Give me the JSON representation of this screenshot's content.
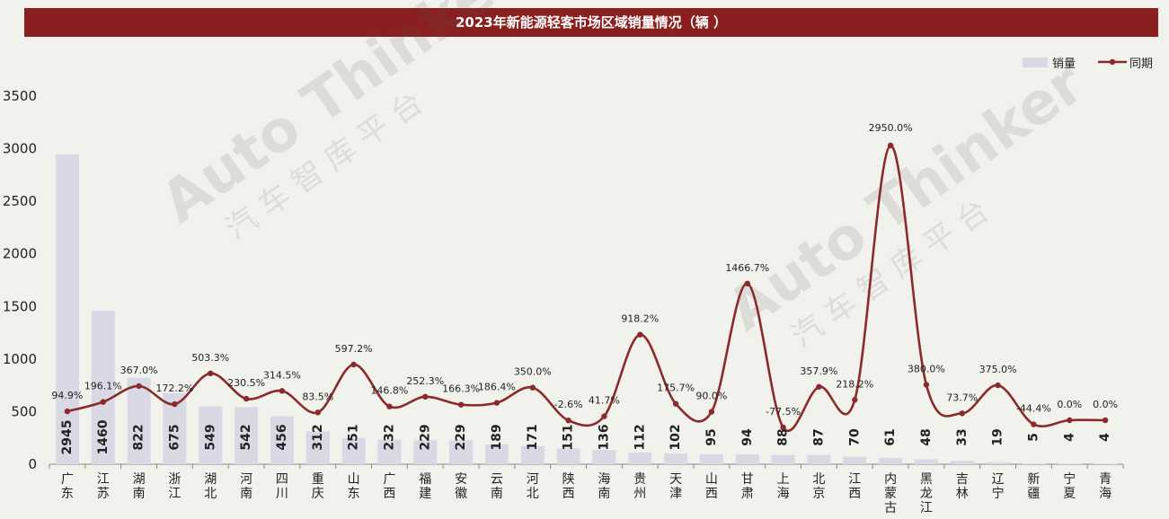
{
  "chart_data": {
    "type": "bar",
    "title": "2023年新能源轻客市场区域销量情况（辆 ）",
    "categories": [
      "广东",
      "江苏",
      "湖南",
      "浙江",
      "湖北",
      "河南",
      "四川",
      "重庆",
      "山东",
      "广西",
      "福建",
      "安徽",
      "云南",
      "河北",
      "陕西",
      "海南",
      "贵州",
      "天津",
      "山西",
      "甘肃",
      "上海",
      "北京",
      "江西",
      "内蒙古",
      "黑龙江",
      "吉林",
      "辽宁",
      "新疆",
      "宁夏",
      "青海"
    ],
    "series": [
      {
        "name": "销量",
        "type": "bar",
        "values": [
          2945,
          1460,
          822,
          675,
          549,
          542,
          456,
          312,
          251,
          232,
          229,
          229,
          189,
          171,
          151,
          136,
          112,
          102,
          95,
          94,
          88,
          87,
          70,
          61,
          48,
          33,
          19,
          5,
          4,
          4
        ]
      },
      {
        "name": "同期",
        "type": "line",
        "values": [
          "94.9%",
          "196.1%",
          "367.0%",
          "172.2%",
          "503.3%",
          "230.5%",
          "314.5%",
          "83.5%",
          "597.2%",
          "146.8%",
          "252.3%",
          "166.3%",
          "186.4%",
          "350.0%",
          "-2.6%",
          "41.7%",
          "918.2%",
          "175.7%",
          "90.0%",
          "1466.7%",
          "-77.5%",
          "357.9%",
          "218.2%",
          "2950.0%",
          "380.0%",
          "73.7%",
          "375.0%",
          "-44.4%",
          "0.0%",
          "0.0%"
        ]
      }
    ],
    "yticks": [
      "0",
      "500",
      "1000",
      "1500",
      "2000",
      "2500",
      "3000",
      "3500"
    ],
    "ylim": [
      0,
      3500
    ],
    "legend_position": "top-right",
    "colors": {
      "bar": "#d9d9e6",
      "line": "#8b2a2a",
      "title_bg": "#8b1f1f"
    }
  },
  "watermark": {
    "brand": "Auto Thinker",
    "chinese": "汽 车 智 库 平 台"
  }
}
